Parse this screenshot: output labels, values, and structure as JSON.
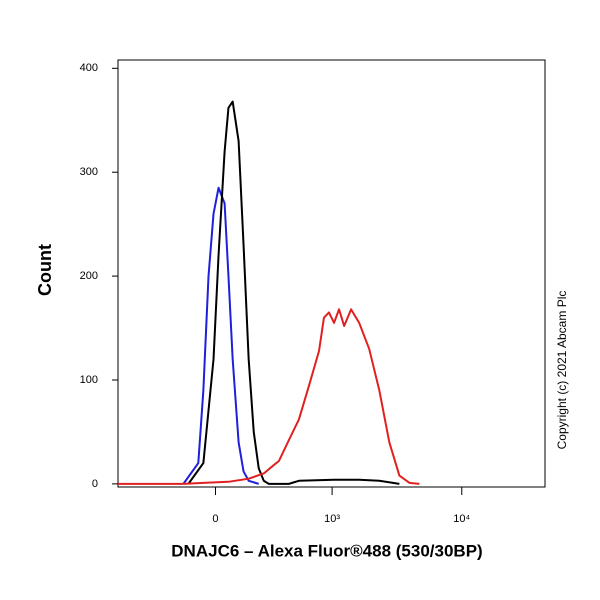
{
  "chart_data": {
    "type": "line",
    "title": "DNAJC6 – Alexa Fluor®488 (530/30BP)",
    "y_label": "Count",
    "annotation": "Copyright (c) 2021 Abcam Plc",
    "xscale": "biexponential",
    "xlim": [
      -702,
      43400
    ],
    "xticks": [
      0,
      {
        "value": 1000,
        "label": "10³"
      },
      {
        "value": 10000,
        "label": "10⁴"
      }
    ],
    "ylim": [
      -3,
      408
    ],
    "yticks": [
      0,
      100,
      200,
      300,
      400
    ],
    "series": [
      {
        "color": "#1f1fdc",
        "x": [
          -155,
          -80,
          -56,
          -32,
          -9,
          14,
          42,
          60,
          80,
          109,
          134,
          161,
          218
        ],
        "values": [
          0,
          20,
          90,
          200,
          260,
          285,
          270,
          200,
          120,
          40,
          12,
          3,
          0
        ]
      },
      {
        "color": "#000000",
        "x": [
          -129,
          -56,
          -9,
          14,
          42,
          60,
          80,
          109,
          134,
          161,
          189,
          218,
          249,
          282,
          438,
          536,
          1035,
          1628,
          2330,
          3323
        ],
        "values": [
          0,
          20,
          120,
          220,
          320,
          362,
          368,
          330,
          230,
          120,
          50,
          15,
          3,
          0,
          0,
          3,
          4,
          4,
          3,
          0
        ]
      },
      {
        "color": "#e02020",
        "x": [
          -702,
          -155,
          -56,
          60,
          161,
          249,
          316,
          355,
          438,
          536,
          653,
          786,
          861,
          944,
          1035,
          1134,
          1243,
          1409,
          1628,
          1945,
          2330,
          2782,
          3323,
          3968,
          4737
        ],
        "values": [
          0,
          0,
          1,
          2,
          5,
          10,
          18,
          22,
          42,
          62,
          95,
          128,
          160,
          165,
          155,
          168,
          152,
          168,
          155,
          130,
          90,
          40,
          8,
          1,
          0
        ]
      }
    ]
  }
}
